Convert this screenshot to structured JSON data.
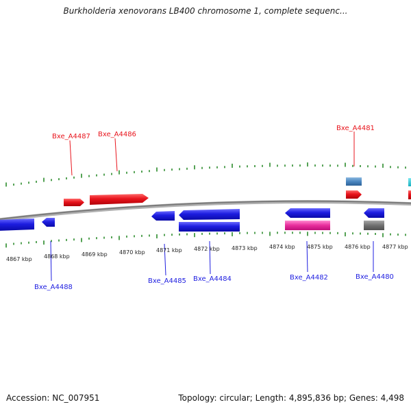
{
  "header": {
    "title": "Burkholderia xenovorans LB400 chromosome 1, complete sequenc..."
  },
  "footer": {
    "accession": "Accession: NC_007951",
    "summary": "Topology: circular; Length: 4,895,836 bp; Genes: 4,498"
  },
  "colors": {
    "forward_gene": "#e8141c",
    "reverse_gene": "#1d1de0",
    "rna_gene": "#e82d9c",
    "pseudo_gene": "#707070",
    "other_gene": "#4a86c0",
    "cyan_feature": "#18c8d8",
    "ticks": "#2a8a2a",
    "backbone": "#8a8a8a"
  },
  "scale": {
    "labels": [
      "4867 kbp",
      "4868 kbp",
      "4869 kbp",
      "4870 kbp",
      "4871 kbp",
      "4872 kbp",
      "4873 kbp",
      "4874 kbp",
      "4875 kbp",
      "4876 kbp",
      "4877 kbp"
    ]
  },
  "genes_top": [
    {
      "name": "Bxe_A4487",
      "color": "#e8141c"
    },
    {
      "name": "Bxe_A4486",
      "color": "#e8141c"
    },
    {
      "name": "Bxe_A4481",
      "color": "#e8141c"
    }
  ],
  "genes_bottom": [
    {
      "name": "Bxe_A4488",
      "color": "#1d1de0"
    },
    {
      "name": "Bxe_A4485",
      "color": "#1d1de0"
    },
    {
      "name": "Bxe_A4484",
      "color": "#1d1de0"
    },
    {
      "name": "Bxe_A4482",
      "color": "#1d1de0"
    },
    {
      "name": "Bxe_A4480",
      "color": "#1d1de0"
    }
  ]
}
